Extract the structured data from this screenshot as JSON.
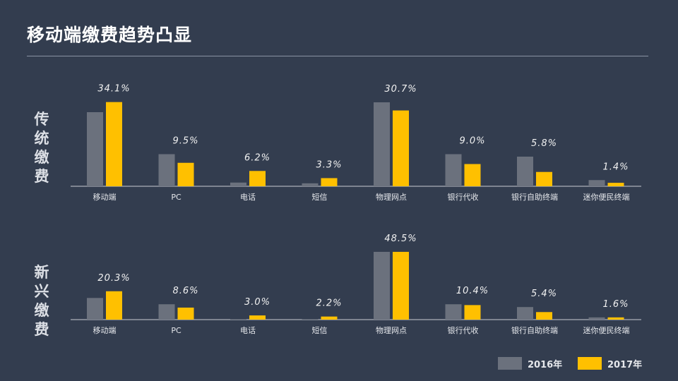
{
  "title": "移动端缴费趋势凸显",
  "colors": {
    "series_2016": "#6b717d",
    "series_2017": "#ffc000",
    "background": "#333d4f"
  },
  "legend": [
    {
      "label": "2016年",
      "color": "#6b717d"
    },
    {
      "label": "2017年",
      "color": "#ffc000"
    }
  ],
  "chart_data": [
    {
      "type": "bar",
      "group_label": "传统缴费",
      "categories": [
        "移动端",
        "PC",
        "电话",
        "短信",
        "物理网点",
        "银行代收",
        "银行自助终端",
        "迷你便民终端"
      ],
      "series": [
        {
          "name": "2016年",
          "values": [
            30.0,
            13.0,
            1.5,
            1.2,
            34.0,
            13.0,
            12.0,
            2.5
          ]
        },
        {
          "name": "2017年",
          "values": [
            34.1,
            9.5,
            6.2,
            3.3,
            30.7,
            9.0,
            5.8,
            1.4
          ]
        }
      ],
      "data_labels": [
        "34.1%",
        "9.5%",
        "6.2%",
        "3.3%",
        "30.7%",
        "9.0%",
        "5.8%",
        "1.4%"
      ],
      "ylim": [
        0,
        36
      ]
    },
    {
      "type": "bar",
      "group_label": "新兴缴费",
      "categories": [
        "移动端",
        "PC",
        "电话",
        "短信",
        "物理网点",
        "银行代收",
        "银行自助终端",
        "迷你便民终端"
      ],
      "series": [
        {
          "name": "2016年",
          "values": [
            15.5,
            11.0,
            0.3,
            0.3,
            48.5,
            11.0,
            9.0,
            1.6
          ]
        },
        {
          "name": "2017年",
          "values": [
            20.3,
            8.6,
            3.0,
            2.2,
            48.5,
            10.4,
            5.4,
            1.6
          ]
        }
      ],
      "data_labels": [
        "20.3%",
        "8.6%",
        "3.0%",
        "2.2%",
        "48.5%",
        "10.4%",
        "5.4%",
        "1.6%"
      ],
      "ylim": [
        0,
        51
      ]
    }
  ]
}
